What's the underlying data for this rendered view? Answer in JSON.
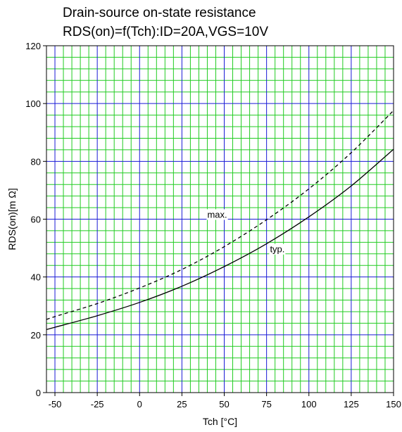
{
  "chart_data": {
    "type": "line",
    "title_lines": [
      "Drain-source on-state resistance",
      "RDS(on)=f(Tch):ID=20A,VGS=10V"
    ],
    "xlabel": "Tch [°C]",
    "ylabel": "RDS(on)[m Ω]",
    "xlim": [
      -55,
      150
    ],
    "ylim": [
      0,
      120
    ],
    "x_ticks": [
      "-50",
      "-25",
      "0",
      "25",
      "50",
      "75",
      "100",
      "125",
      "150"
    ],
    "y_ticks": [
      "0",
      "20",
      "40",
      "60",
      "80",
      "100",
      "120"
    ],
    "x_tick_values": [
      -50,
      -25,
      0,
      25,
      50,
      75,
      100,
      125,
      150
    ],
    "y_tick_values": [
      0,
      20,
      40,
      60,
      80,
      100,
      120
    ],
    "x_minor_step": 5,
    "y_minor_step": 4,
    "grid": true,
    "colors": {
      "major_grid": "#1a1ad6",
      "minor_grid": "#22cc22",
      "series": "#000000"
    },
    "series": [
      {
        "name": "typ.",
        "style": "solid",
        "x": [
          -55,
          -50,
          -25,
          0,
          25,
          50,
          75,
          100,
          125,
          150
        ],
        "y": [
          21.8,
          22.6,
          26.6,
          31.2,
          36.8,
          43.6,
          51.5,
          60.8,
          71.5,
          84.2
        ]
      },
      {
        "name": "max.",
        "style": "dashed",
        "x": [
          -55,
          -50,
          -25,
          0,
          25,
          50,
          75,
          100,
          125,
          150
        ],
        "y": [
          25.3,
          26.3,
          30.8,
          36.2,
          42.6,
          50.5,
          59.8,
          70.5,
          83.0,
          97.6
        ]
      }
    ],
    "labels": [
      {
        "text": "max.",
        "x": 40,
        "y": 60.5
      },
      {
        "text": "typ.",
        "x": 77,
        "y": 48.5
      }
    ]
  }
}
